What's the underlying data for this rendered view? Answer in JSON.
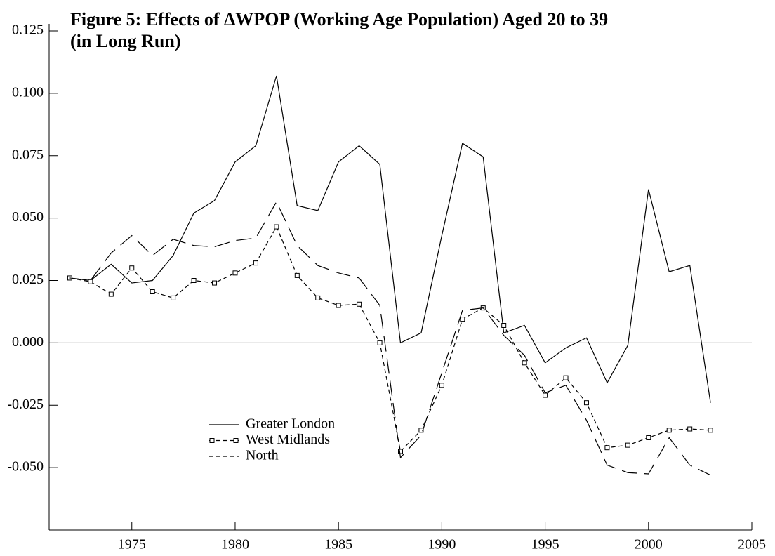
{
  "chart_data": {
    "type": "line",
    "title": [
      "Figure 5: Effects of ΔWPOP (Working Age Population) Aged 20 to 39",
      "(in Long Run)"
    ],
    "x": [
      1972,
      1973,
      1974,
      1975,
      1976,
      1977,
      1978,
      1979,
      1980,
      1981,
      1982,
      1983,
      1984,
      1985,
      1986,
      1987,
      1988,
      1989,
      1990,
      1991,
      1992,
      1993,
      1994,
      1995,
      1996,
      1997,
      1998,
      1999,
      2000,
      2001,
      2002,
      2003
    ],
    "series": [
      {
        "name": "Greater London",
        "color": "#000000",
        "dash": "none",
        "marker": false,
        "values": [
          0.026,
          0.025,
          0.0315,
          0.024,
          0.025,
          0.035,
          0.052,
          0.057,
          0.0725,
          0.079,
          0.107,
          0.055,
          0.053,
          0.0725,
          0.079,
          0.0715,
          0.0,
          0.004,
          0.043,
          0.08,
          0.0745,
          0.004,
          0.007,
          -0.008,
          -0.002,
          0.002,
          -0.016,
          -0.001,
          0.0615,
          0.0285,
          0.031,
          -0.024
        ]
      },
      {
        "name": "West Midlands",
        "color": "#000000",
        "dash": "6,4",
        "marker": true,
        "values": [
          0.026,
          0.0245,
          0.0195,
          0.03,
          0.0205,
          0.018,
          0.025,
          0.024,
          0.028,
          0.032,
          0.0465,
          0.027,
          0.018,
          0.015,
          0.0155,
          0.0,
          -0.0435,
          -0.035,
          -0.017,
          0.0095,
          0.014,
          0.007,
          -0.008,
          -0.021,
          -0.014,
          -0.024,
          -0.042,
          -0.041,
          -0.038,
          -0.035,
          -0.0345,
          -0.035
        ]
      },
      {
        "name": "North",
        "color": "#000000",
        "dash": "22,10",
        "marker": false,
        "values": [
          0.026,
          0.025,
          0.036,
          0.043,
          0.035,
          0.0415,
          0.039,
          0.0385,
          0.041,
          0.042,
          0.0565,
          0.039,
          0.031,
          0.028,
          0.026,
          0.015,
          -0.046,
          -0.037,
          -0.012,
          0.013,
          0.014,
          0.003,
          -0.005,
          -0.02,
          -0.017,
          -0.031,
          -0.049,
          -0.052,
          -0.0525,
          -0.038,
          -0.049,
          -0.053
        ]
      }
    ],
    "xlim": [
      1971,
      2005
    ],
    "xticks": [
      1975,
      1980,
      1985,
      1990,
      1995,
      2000,
      2005
    ],
    "ylim": [
      -0.075,
      0.125
    ],
    "yticks": [
      {
        "value": 0.125,
        "label": "0.125"
      },
      {
        "value": 0.1,
        "label": "0.100"
      },
      {
        "value": 0.075,
        "label": "0.075"
      },
      {
        "value": 0.05,
        "label": "0.050"
      },
      {
        "value": 0.025,
        "label": "0.025"
      },
      {
        "value": 0,
        "label": "0.000"
      },
      {
        "value": -0.025,
        "label": "-0.025"
      },
      {
        "value": -0.05,
        "label": "-0.050"
      }
    ],
    "zero_line": true,
    "grid": false
  }
}
